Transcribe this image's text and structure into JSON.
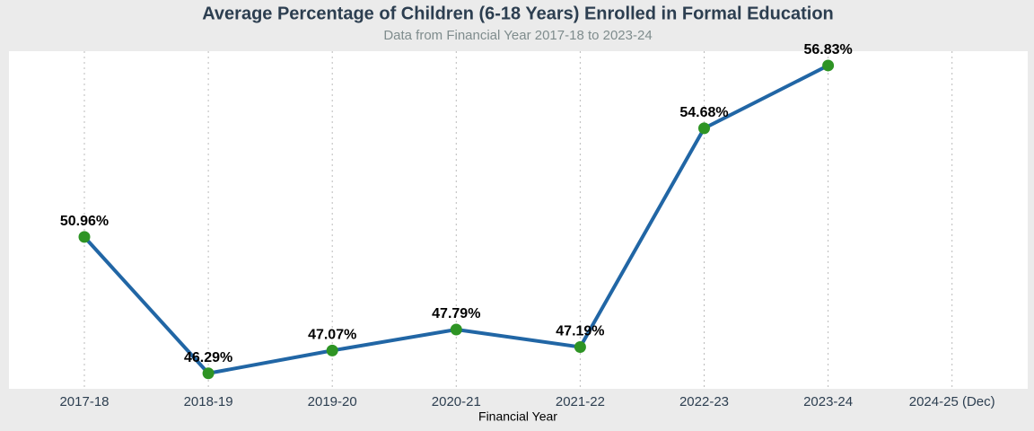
{
  "chart_data": {
    "type": "line",
    "title": "Average Percentage of Children (6-18 Years) Enrolled in Formal Education",
    "subtitle": "Data from Financial Year 2017-18 to 2023-24",
    "x_label": "Financial Year",
    "categories": [
      "2017-18",
      "2018-19",
      "2019-20",
      "2020-21",
      "2021-22",
      "2022-23",
      "2023-24",
      "2024-25 (Dec)"
    ],
    "values": [
      50.96,
      46.29,
      47.07,
      47.79,
      47.19,
      54.68,
      56.83,
      null
    ],
    "value_labels": [
      "50.96%",
      "46.29%",
      "47.07%",
      "47.79%",
      "47.19%",
      "54.68%",
      "56.83%",
      null
    ],
    "line_color": "#2166a5",
    "marker_color": "#2e9424",
    "ylim": [
      45.76,
      57.32
    ],
    "grid": true
  }
}
